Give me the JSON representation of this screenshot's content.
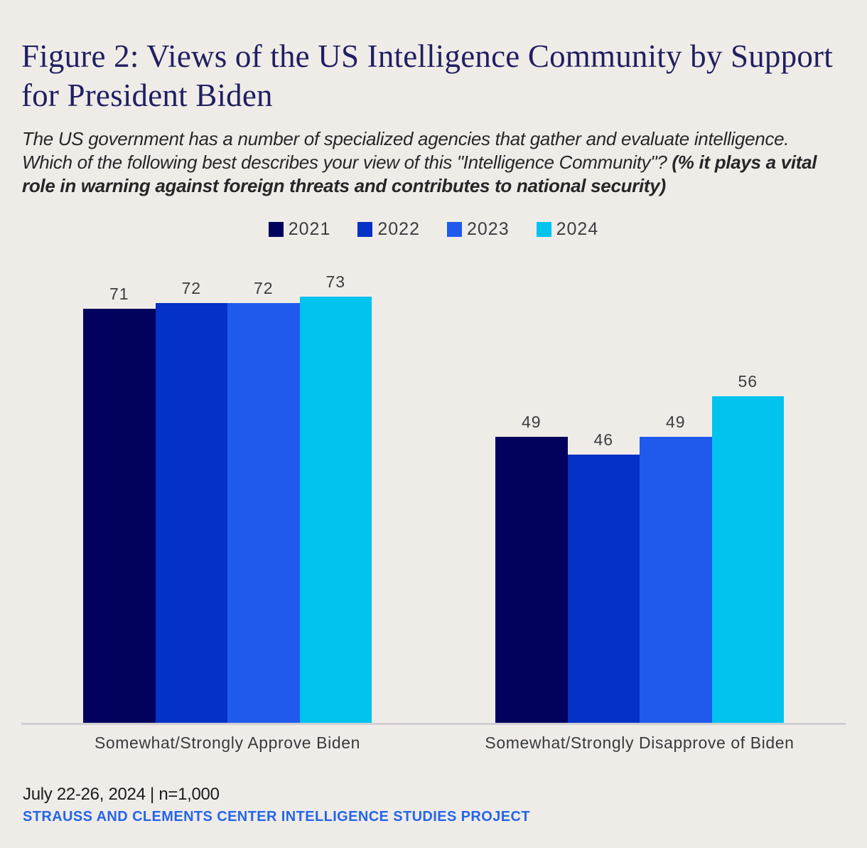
{
  "title": "Figure 2: Views of the US Intelligence Community by Support for President Biden",
  "subtitle": {
    "regular": "The US government has a number of specialized agencies that gather and evaluate intelligence. Which of the following best describes your view of this \"Intelligence Community\"? ",
    "bold": "(% it plays a vital role in warning against foreign threats and contributes to national security)"
  },
  "chart_data": {
    "type": "bar",
    "categories": [
      "Somewhat/Strongly Approve Biden",
      "Somewhat/Strongly Disapprove of Biden"
    ],
    "series": [
      {
        "name": "2021",
        "color": "#03015e",
        "values": [
          71,
          49
        ]
      },
      {
        "name": "2022",
        "color": "#0431c6",
        "values": [
          72,
          46
        ]
      },
      {
        "name": "2023",
        "color": "#1f5aec",
        "values": [
          72,
          49
        ]
      },
      {
        "name": "2024",
        "color": "#00c3ee",
        "values": [
          73,
          56
        ]
      }
    ],
    "ylim": [
      0,
      80
    ],
    "value_labels": true,
    "legend_position": "top-center",
    "grid": false,
    "baseline_axis": "x"
  },
  "footer": {
    "dateline": "July 22-26, 2024 | n=1,000",
    "source": "STRAUSS AND CLEMENTS CENTER INTELLIGENCE STUDIES PROJECT"
  },
  "colors": {
    "background": "#efece8",
    "title_navy": "#211f62",
    "label_gray": "#3d3d3d",
    "axis_line": "#cfced1",
    "source_blue": "#2565e8"
  }
}
